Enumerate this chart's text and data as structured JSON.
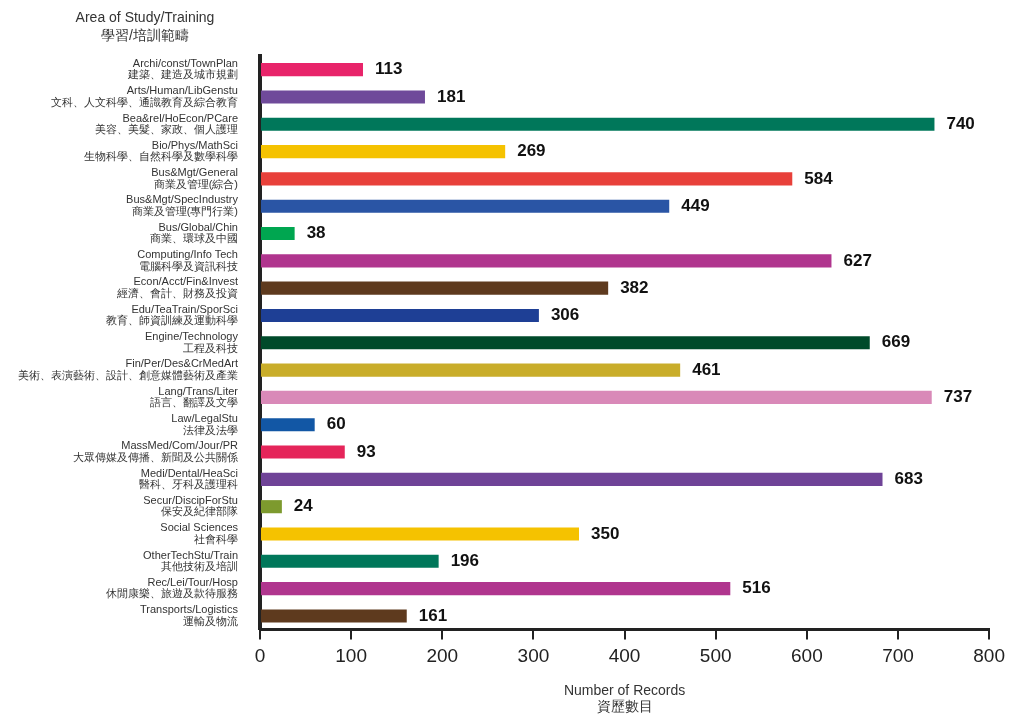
{
  "chart_data": {
    "type": "bar",
    "orientation": "horizontal",
    "ylabel": "Area of Study/Training\n學習/培訓範疇",
    "xlabel": "Number of Records\n資歷數目",
    "categories": [
      "Archi/const/TownPlan\n建築、建造及城市規劃",
      "Arts/Human/LibGenstu\n文科、人文科學、通識教育及綜合教育",
      "Bea&rel/HoEcon/PCare\n美容、美髮、家政、個人護理",
      "Bio/Phys/MathSci\n生物科學、自然科學及數學科學",
      "Bus&Mgt/General\n商業及管理(綜合)",
      "Bus&Mgt/SpecIndustry\n商業及管理(專門行業)",
      "Bus/Global/Chin\n商業、環球及中國",
      "Computing/Info Tech\n電腦科學及資訊科技",
      "Econ/Acct/Fin&Invest\n經濟、會計、財務及投資",
      "Edu/TeaTrain/SporSci\n教育、師資訓練及運動科學",
      "Engine/Technology\n工程及科技",
      "Fin/Per/Des&CrMedArt\n美術、表演藝術、設計、創意媒體藝術及產業",
      "Lang/Trans/Liter\n語言、翻譯及文學",
      "Law/LegalStu\n法律及法學",
      "MassMed/Com/Jour/PR\n大眾傳媒及傳播、新聞及公共關係",
      "Medi/Dental/HeaSci\n醫科、牙科及護理科",
      "Secur/DiscipForStu\n保安及紀律部隊",
      "Social Sciences\n社會科學",
      "OtherTechStu/Train\n其他技術及培訓",
      "Rec/Lei/Tour/Hosp\n休閒康樂、旅遊及款待服務",
      "Transports/Logistics\n運輸及物流"
    ],
    "values": [
      113,
      181,
      740,
      269,
      584,
      449,
      38,
      627,
      382,
      306,
      669,
      461,
      737,
      60,
      93,
      683,
      24,
      350,
      196,
      516,
      161
    ],
    "colors": [
      "#e8246a",
      "#6f4a9a",
      "#00775a",
      "#f5c200",
      "#e8403a",
      "#2a55a5",
      "#00a650",
      "#b0358e",
      "#5e3a1e",
      "#1e3f95",
      "#004a2a",
      "#c9ad2a",
      "#d989b8",
      "#1257a5",
      "#e5255a",
      "#6f4397",
      "#7d9a2e",
      "#f5c200",
      "#00775a",
      "#b0358e",
      "#5e3a1e"
    ],
    "xlim": [
      0,
      800
    ],
    "xticks": [
      0,
      100,
      200,
      300,
      400,
      500,
      600,
      700,
      800
    ],
    "data_labels": true,
    "grid": false,
    "legend": false
  }
}
